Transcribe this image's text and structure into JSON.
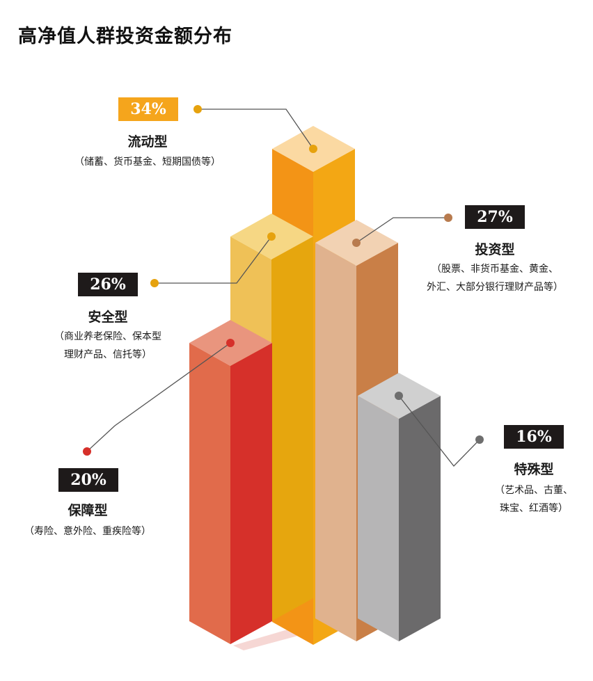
{
  "title": "高净值人群投资金额分布",
  "chart_data": {
    "type": "bar",
    "title": "高净值人群投资金额分布",
    "categories": [
      "保障型",
      "安全型",
      "流动型",
      "投资型",
      "特殊型"
    ],
    "values": [
      20,
      26,
      34,
      27,
      16
    ],
    "value_labels": [
      "20%",
      "26%",
      "34%",
      "27%",
      "16%"
    ],
    "descriptions": [
      [
        "（寿险、意外险、重疾险等）"
      ],
      [
        "（商业养老保险、保本型",
        "理财产品、信托等）"
      ],
      [
        "（储蓄、货币基金、短期国债等）"
      ],
      [
        "（股票、非货币基金、黄金、",
        "外汇、大部分银行理财产品等）"
      ],
      [
        "（艺术品、古董、",
        "珠宝、红酒等）"
      ]
    ],
    "colors": {
      "保障型": {
        "top": "#E9957E",
        "front": "#E16B4B",
        "side": "#D6302A"
      },
      "安全型": {
        "top": "#F6D784",
        "front": "#EFC157",
        "side": "#E6A60E"
      },
      "流动型": {
        "top": "#FBD9A2",
        "front": "#F39416",
        "side": "#F3A714"
      },
      "投资型": {
        "top": "#F2D2B3",
        "front": "#E0B28E",
        "side": "#C97F47"
      },
      "特殊型": {
        "top": "#D0D0D0",
        "front": "#B6B5B6",
        "side": "#6B6A6B"
      }
    },
    "badge_colors": {
      "流动型": "#F5A51C",
      "default": "#1E1A1A"
    },
    "dot_colors": {
      "保障型": "#D6302A",
      "安全型": "#E6A20E",
      "流动型": "#E6A20E",
      "投资型": "#B87B4E",
      "特殊型": "#6E6E6E"
    }
  }
}
